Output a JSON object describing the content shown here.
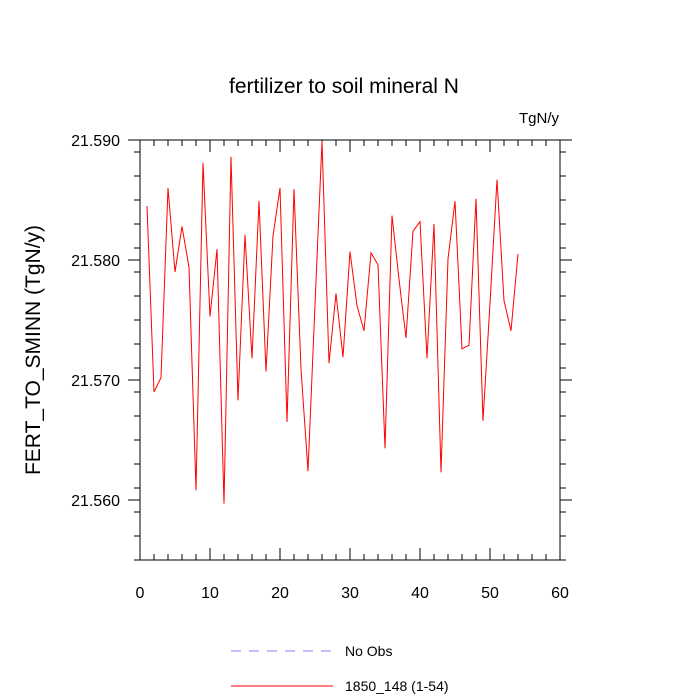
{
  "chart_data": {
    "type": "line",
    "title": "fertilizer to soil mineral N",
    "units_label": "TgN/y",
    "xlabel": "",
    "ylabel": "FERT_TO_SMINN  (TgN/y)",
    "xlim": [
      0,
      60
    ],
    "ylim": [
      21.555,
      21.59
    ],
    "x_ticks": [
      0,
      10,
      20,
      30,
      40,
      50,
      60
    ],
    "x_tick_labels": [
      "0",
      "10",
      "20",
      "30",
      "40",
      "50",
      "60"
    ],
    "y_ticks": [
      21.56,
      21.57,
      21.58,
      21.59
    ],
    "y_tick_labels": [
      "21.560",
      "21.570",
      "21.580",
      "21.590"
    ],
    "grid": false,
    "legend_position": "bottom-center",
    "series": [
      {
        "name": "1850_148 (1-54)",
        "color": "#ff0000",
        "style": "solid",
        "x": [
          1,
          2,
          3,
          4,
          5,
          6,
          7,
          8,
          9,
          10,
          11,
          12,
          13,
          14,
          15,
          16,
          17,
          18,
          19,
          20,
          21,
          22,
          23,
          24,
          25,
          26,
          27,
          28,
          29,
          30,
          31,
          32,
          33,
          34,
          35,
          36,
          37,
          38,
          39,
          40,
          41,
          42,
          43,
          44,
          45,
          46,
          47,
          48,
          49,
          50,
          51,
          52,
          53,
          54
        ],
        "values": [
          21.5845,
          21.569,
          21.5702,
          21.586,
          21.579,
          21.5828,
          21.5794,
          21.5608,
          21.5881,
          21.5753,
          21.5809,
          21.5597,
          21.5886,
          21.5683,
          21.5821,
          21.5718,
          21.5849,
          21.5707,
          21.582,
          21.586,
          21.5665,
          21.5859,
          21.5709,
          21.5624,
          21.5763,
          21.5899,
          21.5714,
          21.5772,
          21.5719,
          21.5807,
          21.5762,
          21.5741,
          21.5806,
          21.5796,
          21.5643,
          21.5837,
          21.5784,
          21.5735,
          21.5824,
          21.5832,
          21.5718,
          21.583,
          21.5623,
          21.5801,
          21.5849,
          21.5726,
          21.5729,
          21.5851,
          21.5666,
          21.5764,
          21.5867,
          21.5766,
          21.5741,
          21.5805
        ]
      },
      {
        "name": "No Obs",
        "color": "#8080ff",
        "style": "dashed",
        "x": [],
        "values": []
      }
    ]
  }
}
